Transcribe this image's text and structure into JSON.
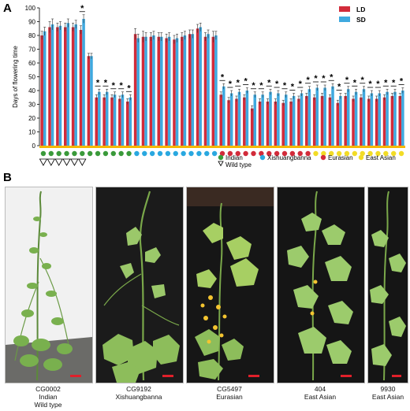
{
  "panels": {
    "a": "A",
    "b": "B"
  },
  "chart_data": {
    "type": "bar",
    "ylabel": "Days of flowering time",
    "ylim": [
      0,
      100
    ],
    "yticks": [
      0,
      10,
      20,
      30,
      40,
      50,
      60,
      70,
      80,
      90,
      100
    ],
    "legend_position": "top-right",
    "series": [
      {
        "name": "LD",
        "color": "#d22b3a",
        "values": [
          80,
          86,
          86,
          86,
          86,
          84,
          65,
          35,
          35,
          35,
          34,
          32,
          81,
          79,
          79,
          79,
          78,
          77,
          79,
          81,
          85,
          79,
          79,
          37,
          33,
          34,
          35,
          27,
          32,
          32,
          32,
          31,
          32,
          34,
          36,
          35,
          36,
          35,
          31,
          36,
          34,
          35,
          34,
          34,
          35,
          36,
          36
        ]
      },
      {
        "name": "SD",
        "color": "#3fa9df",
        "values": [
          83,
          88,
          87,
          89,
          88,
          92,
          65,
          39,
          39,
          37,
          37,
          35,
          78,
          79,
          80,
          79,
          79,
          78,
          80,
          81,
          86,
          81,
          80,
          43,
          38,
          39,
          40,
          37,
          37,
          39,
          38,
          37,
          36,
          38,
          41,
          42,
          42,
          43,
          36,
          41,
          39,
          41,
          38,
          38,
          39,
          39,
          40
        ]
      }
    ],
    "errors": {
      "LD": [
        3,
        4,
        3,
        3,
        3,
        3,
        2,
        2,
        2,
        2,
        2,
        2,
        4,
        4,
        3,
        3,
        3,
        3,
        3,
        3,
        3,
        3,
        4,
        2,
        2,
        2,
        2,
        2,
        2,
        2,
        2,
        2,
        2,
        2,
        2,
        2,
        2,
        2,
        2,
        2,
        2,
        2,
        2,
        2,
        2,
        2,
        2
      ],
      "SD": [
        3,
        4,
        3,
        3,
        3,
        3,
        2,
        2,
        2,
        2,
        2,
        2,
        3,
        3,
        3,
        3,
        3,
        3,
        3,
        3,
        3,
        3,
        3,
        2,
        2,
        2,
        2,
        2,
        2,
        2,
        2,
        2,
        2,
        2,
        2,
        2,
        2,
        2,
        2,
        2,
        2,
        2,
        2,
        2,
        2,
        2,
        2
      ]
    },
    "significance_label": "*",
    "significant": [
      0,
      0,
      0,
      0,
      0,
      1,
      0,
      1,
      1,
      1,
      1,
      1,
      0,
      0,
      0,
      0,
      0,
      0,
      0,
      0,
      0,
      0,
      0,
      1,
      1,
      1,
      1,
      1,
      1,
      1,
      1,
      1,
      1,
      1,
      1,
      1,
      1,
      1,
      1,
      1,
      1,
      1,
      1,
      1,
      1,
      1,
      1
    ],
    "accession_groups": [
      "Indian",
      "Indian",
      "Indian",
      "Indian",
      "Indian",
      "Indian",
      "Indian",
      "Indian",
      "Indian",
      "Indian",
      "Indian",
      "Indian",
      "Xishuangbanna",
      "Xishuangbanna",
      "Xishuangbanna",
      "Xishuangbanna",
      "Xishuangbanna",
      "Xishuangbanna",
      "Xishuangbanna",
      "Xishuangbanna",
      "Xishuangbanna",
      "Xishuangbanna",
      "Xishuangbanna",
      "Eurasian",
      "Eurasian",
      "Eurasian",
      "Eurasian",
      "Eurasian",
      "Eurasian",
      "Eurasian",
      "Eurasian",
      "Eurasian",
      "Eurasian",
      "Eurasian",
      "Eurasian",
      "East Asian",
      "East Asian",
      "East Asian",
      "East Asian",
      "East Asian",
      "East Asian",
      "East Asian",
      "East Asian",
      "East Asian",
      "East Asian",
      "East Asian",
      "East Asian"
    ],
    "wild_type": [
      1,
      1,
      1,
      1,
      1,
      1,
      0,
      0,
      0,
      0,
      0,
      0,
      0,
      0,
      0,
      0,
      0,
      0,
      0,
      0,
      0,
      0,
      0,
      0,
      0,
      0,
      0,
      0,
      0,
      0,
      0,
      0,
      0,
      0,
      0,
      0,
      0,
      0,
      0,
      0,
      0,
      0,
      0,
      0,
      0,
      0,
      0
    ],
    "group_legend": [
      {
        "name": "Indian",
        "color": "#3a9a3a"
      },
      {
        "name": "Xishuangbanna",
        "color": "#29a8e0"
      },
      {
        "name": "Eurasian",
        "color": "#d22b3a"
      },
      {
        "name": "East Asian",
        "color": "#f2dc26"
      }
    ],
    "wild_type_label": "Wild type"
  },
  "photos": [
    {
      "id": "CG0002",
      "lines": [
        "CG0002",
        "Indian",
        "Wild type"
      ]
    },
    {
      "id": "CG9192",
      "lines": [
        "CG9192",
        "Xishuangbanna"
      ]
    },
    {
      "id": "CG5497",
      "lines": [
        "CG5497",
        "Eurasian"
      ]
    },
    {
      "id": "404",
      "lines": [
        "404",
        "East Asian"
      ]
    },
    {
      "id": "9930",
      "lines": [
        "9930",
        "East Asian"
      ]
    }
  ]
}
